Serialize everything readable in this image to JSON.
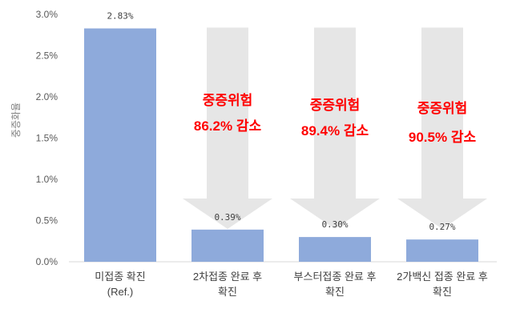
{
  "chart_data": {
    "type": "bar",
    "ylabel": "중증화율",
    "ylim": [
      0,
      3.0
    ],
    "yticks": [
      "0.0%",
      "0.5%",
      "1.0%",
      "1.5%",
      "2.0%",
      "2.5%",
      "3.0%"
    ],
    "categories": [
      [
        "미접종 확진",
        "(Ref.)"
      ],
      [
        "2차접종 완료 후",
        "확진"
      ],
      [
        "부스터접종 완료 후",
        "확진"
      ],
      [
        "2가백신 접종 완료 후",
        "확진"
      ]
    ],
    "values": [
      2.83,
      0.39,
      0.3,
      0.27
    ],
    "data_labels": [
      "2.83%",
      "0.39%",
      "0.30%",
      "0.27%"
    ],
    "bar_color": "#8eaadb",
    "arrow_color": "#e6e6e6",
    "annotation_color": "#ff0000",
    "annotations": [
      null,
      [
        "중증위험",
        "86.2% 감소"
      ],
      [
        "중증위험",
        "89.4% 감소"
      ],
      [
        "중증위험",
        "90.5% 감소"
      ]
    ],
    "grid": false,
    "legend": "none"
  }
}
